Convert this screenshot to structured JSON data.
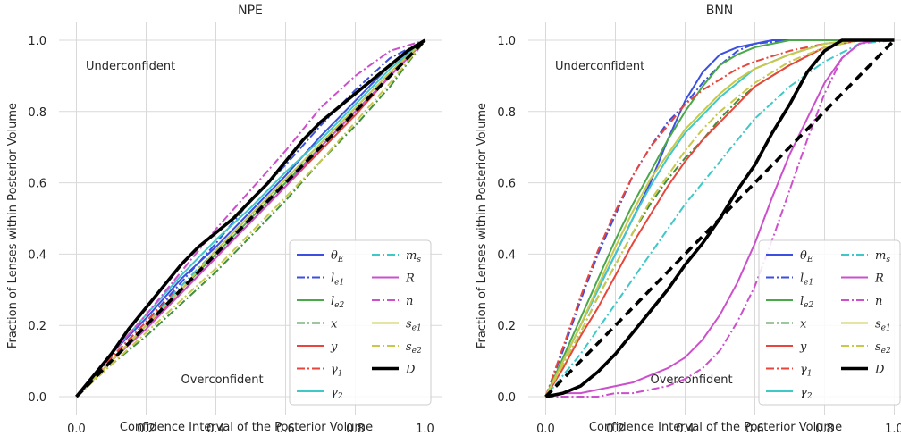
{
  "chart_data": [
    {
      "type": "line",
      "title": "NPE",
      "xlabel": "Confidence Interval of the Posterior Volume",
      "ylabel": "Fraction of Lenses within Posterior Volume",
      "xlim": [
        -0.05,
        1.05
      ],
      "ylim": [
        -0.05,
        1.05
      ],
      "xticks": [
        "0.0",
        "0.2",
        "0.4",
        "0.6",
        "0.8",
        "1.0"
      ],
      "yticks": [
        "0.0",
        "0.2",
        "0.4",
        "0.6",
        "0.8",
        "1.0"
      ],
      "grid": true,
      "legend_position": "lower-right",
      "annotations": [
        "Underconfident",
        "Overconfident"
      ],
      "series": [
        {
          "name": "θ_E",
          "color": "#3b4fe0",
          "dash": "solid",
          "x": [
            0,
            0.1,
            0.2,
            0.3,
            0.4,
            0.5,
            0.6,
            0.7,
            0.8,
            0.9,
            1.0
          ],
          "y": [
            0,
            0.12,
            0.22,
            0.33,
            0.42,
            0.52,
            0.62,
            0.73,
            0.83,
            0.93,
            1.0
          ]
        },
        {
          "name": "l_e1",
          "color": "#3b4fe0",
          "dash": "dashdot",
          "x": [
            0,
            0.1,
            0.2,
            0.3,
            0.4,
            0.5,
            0.6,
            0.7,
            0.8,
            0.9,
            1.0
          ],
          "y": [
            0,
            0.11,
            0.21,
            0.32,
            0.43,
            0.55,
            0.65,
            0.76,
            0.86,
            0.95,
            1.0
          ]
        },
        {
          "name": "l_e2",
          "color": "#4aa84a",
          "dash": "solid",
          "x": [
            0,
            0.1,
            0.2,
            0.3,
            0.4,
            0.5,
            0.6,
            0.7,
            0.8,
            0.9,
            1.0
          ],
          "y": [
            0,
            0.1,
            0.2,
            0.3,
            0.4,
            0.5,
            0.6,
            0.7,
            0.8,
            0.9,
            1.0
          ]
        },
        {
          "name": "x",
          "color": "#3f8f3f",
          "dash": "dashdot",
          "x": [
            0,
            0.1,
            0.2,
            0.3,
            0.4,
            0.5,
            0.6,
            0.7,
            0.8,
            0.9,
            1.0
          ],
          "y": [
            0,
            0.09,
            0.17,
            0.26,
            0.35,
            0.45,
            0.55,
            0.66,
            0.76,
            0.87,
            1.0
          ]
        },
        {
          "name": "y",
          "color": "#e8453c",
          "dash": "solid",
          "x": [
            0,
            0.1,
            0.2,
            0.3,
            0.4,
            0.5,
            0.6,
            0.7,
            0.8,
            0.9,
            1.0
          ],
          "y": [
            0,
            0.1,
            0.2,
            0.29,
            0.39,
            0.49,
            0.59,
            0.69,
            0.79,
            0.9,
            1.0
          ]
        },
        {
          "name": "γ_1",
          "color": "#e8453c",
          "dash": "dashdot",
          "x": [
            0,
            0.1,
            0.2,
            0.3,
            0.4,
            0.5,
            0.6,
            0.7,
            0.8,
            0.9,
            1.0
          ],
          "y": [
            0,
            0.11,
            0.21,
            0.31,
            0.41,
            0.51,
            0.61,
            0.71,
            0.81,
            0.91,
            1.0
          ]
        },
        {
          "name": "γ_2",
          "color": "#40c8c8",
          "dash": "solid",
          "x": [
            0,
            0.1,
            0.2,
            0.3,
            0.4,
            0.5,
            0.6,
            0.7,
            0.8,
            0.9,
            1.0
          ],
          "y": [
            0,
            0.12,
            0.23,
            0.34,
            0.44,
            0.53,
            0.63,
            0.72,
            0.82,
            0.92,
            1.0
          ]
        },
        {
          "name": "m_s",
          "color": "#40c8c8",
          "dash": "dashdot",
          "x": [
            0,
            0.1,
            0.2,
            0.3,
            0.4,
            0.5,
            0.6,
            0.7,
            0.8,
            0.9,
            1.0
          ],
          "y": [
            0,
            0.1,
            0.2,
            0.31,
            0.41,
            0.51,
            0.61,
            0.71,
            0.81,
            0.91,
            1.0
          ]
        },
        {
          "name": "R",
          "color": "#cc4fcc",
          "dash": "solid",
          "x": [
            0,
            0.1,
            0.2,
            0.3,
            0.4,
            0.5,
            0.6,
            0.7,
            0.8,
            0.9,
            1.0
          ],
          "y": [
            0,
            0.1,
            0.19,
            0.29,
            0.39,
            0.49,
            0.59,
            0.7,
            0.8,
            0.9,
            1.0
          ]
        },
        {
          "name": "n",
          "color": "#cc4fcc",
          "dash": "dashdot",
          "x": [
            0,
            0.1,
            0.2,
            0.3,
            0.4,
            0.5,
            0.6,
            0.7,
            0.8,
            0.9,
            1.0
          ],
          "y": [
            0,
            0.12,
            0.23,
            0.35,
            0.47,
            0.58,
            0.69,
            0.81,
            0.9,
            0.97,
            1.0
          ]
        },
        {
          "name": "s_e1",
          "color": "#c8c84a",
          "dash": "solid",
          "x": [
            0,
            0.1,
            0.2,
            0.3,
            0.4,
            0.5,
            0.6,
            0.7,
            0.8,
            0.9,
            1.0
          ],
          "y": [
            0,
            0.1,
            0.2,
            0.3,
            0.41,
            0.51,
            0.61,
            0.71,
            0.81,
            0.91,
            1.0
          ]
        },
        {
          "name": "s_e2",
          "color": "#c8c84a",
          "dash": "dashdot",
          "x": [
            0,
            0.1,
            0.2,
            0.3,
            0.4,
            0.5,
            0.6,
            0.7,
            0.8,
            0.9,
            1.0
          ],
          "y": [
            0,
            0.09,
            0.18,
            0.27,
            0.36,
            0.46,
            0.56,
            0.66,
            0.77,
            0.88,
            1.0
          ]
        },
        {
          "name": "D",
          "color": "#000000",
          "dash": "solid",
          "bold": true,
          "x": [
            0,
            0.05,
            0.1,
            0.15,
            0.2,
            0.25,
            0.3,
            0.35,
            0.4,
            0.45,
            0.5,
            0.55,
            0.6,
            0.65,
            0.7,
            0.75,
            0.8,
            0.85,
            0.9,
            0.95,
            1.0
          ],
          "y": [
            0,
            0.06,
            0.12,
            0.19,
            0.25,
            0.31,
            0.37,
            0.42,
            0.46,
            0.5,
            0.55,
            0.6,
            0.66,
            0.72,
            0.77,
            0.81,
            0.85,
            0.89,
            0.93,
            0.97,
            1.0
          ]
        },
        {
          "name": "",
          "color": "#000000",
          "dash": "dashed",
          "bold": true,
          "reference": true,
          "x": [
            0,
            1.0
          ],
          "y": [
            0,
            1.0
          ]
        }
      ]
    },
    {
      "type": "line",
      "title": "BNN",
      "xlabel": "Confidence Interval of the Posterior Volume",
      "ylabel": "Fraction of Lenses within Posterior Volume",
      "xlim": [
        -0.05,
        1.05
      ],
      "ylim": [
        -0.05,
        1.05
      ],
      "xticks": [
        "0.0",
        "0.2",
        "0.4",
        "0.6",
        "0.8",
        "1.0"
      ],
      "yticks": [
        "0.0",
        "0.2",
        "0.4",
        "0.6",
        "0.8",
        "1.0"
      ],
      "grid": true,
      "legend_position": "lower-right",
      "annotations": [
        "Underconfident",
        "Overconfident"
      ],
      "series": [
        {
          "name": "θ_E",
          "color": "#3b4fe0",
          "dash": "solid",
          "x": [
            0,
            0.05,
            0.1,
            0.15,
            0.2,
            0.25,
            0.3,
            0.35,
            0.4,
            0.45,
            0.5,
            0.55,
            0.6,
            0.65,
            0.7,
            0.8,
            0.9,
            1.0
          ],
          "y": [
            0,
            0.1,
            0.2,
            0.3,
            0.4,
            0.5,
            0.6,
            0.72,
            0.83,
            0.91,
            0.96,
            0.98,
            0.99,
            1.0,
            1.0,
            1.0,
            1.0,
            1.0
          ]
        },
        {
          "name": "l_e1",
          "color": "#3b4fe0",
          "dash": "dashdot",
          "x": [
            0,
            0.05,
            0.1,
            0.15,
            0.2,
            0.25,
            0.3,
            0.35,
            0.4,
            0.45,
            0.5,
            0.55,
            0.6,
            0.7,
            0.8,
            0.9,
            1.0
          ],
          "y": [
            0,
            0.13,
            0.27,
            0.4,
            0.51,
            0.62,
            0.7,
            0.77,
            0.82,
            0.88,
            0.93,
            0.97,
            0.99,
            1.0,
            1.0,
            1.0,
            1.0
          ]
        },
        {
          "name": "l_e2",
          "color": "#4aa84a",
          "dash": "solid",
          "x": [
            0,
            0.05,
            0.1,
            0.15,
            0.2,
            0.25,
            0.3,
            0.35,
            0.4,
            0.45,
            0.5,
            0.55,
            0.6,
            0.7,
            0.8,
            0.9,
            1.0
          ],
          "y": [
            0,
            0.11,
            0.22,
            0.33,
            0.44,
            0.54,
            0.63,
            0.72,
            0.8,
            0.87,
            0.93,
            0.96,
            0.98,
            1.0,
            1.0,
            1.0,
            1.0
          ]
        },
        {
          "name": "x",
          "color": "#3f8f3f",
          "dash": "dashdot",
          "x": [
            0,
            0.05,
            0.1,
            0.15,
            0.2,
            0.25,
            0.3,
            0.35,
            0.4,
            0.45,
            0.5,
            0.55,
            0.6,
            0.7,
            0.8,
            0.9,
            1.0
          ],
          "y": [
            0,
            0.09,
            0.18,
            0.28,
            0.37,
            0.46,
            0.54,
            0.61,
            0.67,
            0.72,
            0.78,
            0.83,
            0.87,
            0.93,
            0.98,
            1.0,
            1.0
          ]
        },
        {
          "name": "y",
          "color": "#e8453c",
          "dash": "solid",
          "x": [
            0,
            0.05,
            0.1,
            0.15,
            0.2,
            0.25,
            0.3,
            0.35,
            0.4,
            0.45,
            0.5,
            0.55,
            0.6,
            0.7,
            0.8,
            0.9,
            1.0
          ],
          "y": [
            0,
            0.08,
            0.17,
            0.25,
            0.34,
            0.43,
            0.51,
            0.59,
            0.66,
            0.72,
            0.77,
            0.82,
            0.87,
            0.93,
            0.98,
            1.0,
            1.0
          ]
        },
        {
          "name": "γ_1",
          "color": "#e8453c",
          "dash": "dashdot",
          "x": [
            0,
            0.05,
            0.1,
            0.15,
            0.2,
            0.25,
            0.3,
            0.35,
            0.4,
            0.45,
            0.5,
            0.55,
            0.6,
            0.7,
            0.8,
            0.9,
            1.0
          ],
          "y": [
            0,
            0.14,
            0.28,
            0.41,
            0.52,
            0.62,
            0.7,
            0.76,
            0.82,
            0.86,
            0.89,
            0.92,
            0.94,
            0.97,
            0.99,
            1.0,
            1.0
          ]
        },
        {
          "name": "γ_2",
          "color": "#40c8c8",
          "dash": "solid",
          "x": [
            0,
            0.05,
            0.1,
            0.15,
            0.2,
            0.25,
            0.3,
            0.35,
            0.4,
            0.45,
            0.5,
            0.55,
            0.6,
            0.7,
            0.8,
            0.9,
            1.0
          ],
          "y": [
            0,
            0.1,
            0.2,
            0.3,
            0.4,
            0.5,
            0.59,
            0.67,
            0.74,
            0.79,
            0.84,
            0.88,
            0.92,
            0.96,
            0.99,
            1.0,
            1.0
          ]
        },
        {
          "name": "m_s",
          "color": "#40c8c8",
          "dash": "dashdot",
          "x": [
            0,
            0.05,
            0.1,
            0.15,
            0.2,
            0.25,
            0.3,
            0.35,
            0.4,
            0.45,
            0.5,
            0.55,
            0.6,
            0.7,
            0.8,
            0.9,
            1.0
          ],
          "y": [
            0,
            0.06,
            0.12,
            0.19,
            0.26,
            0.33,
            0.4,
            0.47,
            0.54,
            0.6,
            0.66,
            0.72,
            0.78,
            0.87,
            0.94,
            0.99,
            1.0
          ]
        },
        {
          "name": "R",
          "color": "#cc4fcc",
          "dash": "solid",
          "x": [
            0,
            0.05,
            0.1,
            0.15,
            0.2,
            0.25,
            0.3,
            0.35,
            0.4,
            0.45,
            0.5,
            0.55,
            0.6,
            0.65,
            0.7,
            0.75,
            0.8,
            0.85,
            0.9,
            0.95,
            1.0
          ],
          "y": [
            0,
            0.01,
            0.01,
            0.02,
            0.03,
            0.04,
            0.06,
            0.08,
            0.11,
            0.16,
            0.23,
            0.32,
            0.43,
            0.56,
            0.68,
            0.78,
            0.88,
            0.95,
            0.99,
            1.0,
            1.0
          ]
        },
        {
          "name": "n",
          "color": "#cc4fcc",
          "dash": "dashdot",
          "x": [
            0,
            0.05,
            0.1,
            0.15,
            0.2,
            0.25,
            0.3,
            0.35,
            0.4,
            0.45,
            0.5,
            0.55,
            0.6,
            0.65,
            0.7,
            0.75,
            0.8,
            0.85,
            0.9,
            0.95,
            1.0
          ],
          "y": [
            0,
            0.0,
            0.0,
            0.0,
            0.01,
            0.01,
            0.02,
            0.03,
            0.05,
            0.08,
            0.13,
            0.21,
            0.31,
            0.44,
            0.58,
            0.72,
            0.85,
            0.95,
            0.99,
            1.0,
            1.0
          ]
        },
        {
          "name": "s_e1",
          "color": "#c8c84a",
          "dash": "solid",
          "x": [
            0,
            0.05,
            0.1,
            0.15,
            0.2,
            0.25,
            0.3,
            0.35,
            0.4,
            0.45,
            0.5,
            0.55,
            0.6,
            0.7,
            0.8,
            0.9,
            1.0
          ],
          "y": [
            0,
            0.1,
            0.2,
            0.31,
            0.42,
            0.52,
            0.61,
            0.68,
            0.75,
            0.8,
            0.85,
            0.89,
            0.92,
            0.96,
            0.99,
            1.0,
            1.0
          ]
        },
        {
          "name": "s_e2",
          "color": "#c8c84a",
          "dash": "dashdot",
          "x": [
            0,
            0.05,
            0.1,
            0.15,
            0.2,
            0.25,
            0.3,
            0.35,
            0.4,
            0.45,
            0.5,
            0.55,
            0.6,
            0.7,
            0.8,
            0.9,
            1.0
          ],
          "y": [
            0,
            0.09,
            0.18,
            0.28,
            0.37,
            0.46,
            0.55,
            0.62,
            0.69,
            0.75,
            0.8,
            0.84,
            0.88,
            0.94,
            0.98,
            1.0,
            1.0
          ]
        },
        {
          "name": "D",
          "color": "#000000",
          "dash": "solid",
          "bold": true,
          "x": [
            0,
            0.05,
            0.1,
            0.15,
            0.2,
            0.25,
            0.3,
            0.35,
            0.4,
            0.45,
            0.5,
            0.55,
            0.6,
            0.65,
            0.7,
            0.75,
            0.8,
            0.85,
            0.9,
            0.95,
            1.0
          ],
          "y": [
            0,
            0.01,
            0.03,
            0.07,
            0.12,
            0.18,
            0.24,
            0.3,
            0.37,
            0.43,
            0.5,
            0.58,
            0.65,
            0.74,
            0.82,
            0.91,
            0.97,
            1.0,
            1.0,
            1.0,
            1.0
          ]
        },
        {
          "name": "",
          "color": "#000000",
          "dash": "dashed",
          "bold": true,
          "reference": true,
          "x": [
            0,
            1.0
          ],
          "y": [
            0,
            1.0
          ]
        }
      ]
    }
  ]
}
